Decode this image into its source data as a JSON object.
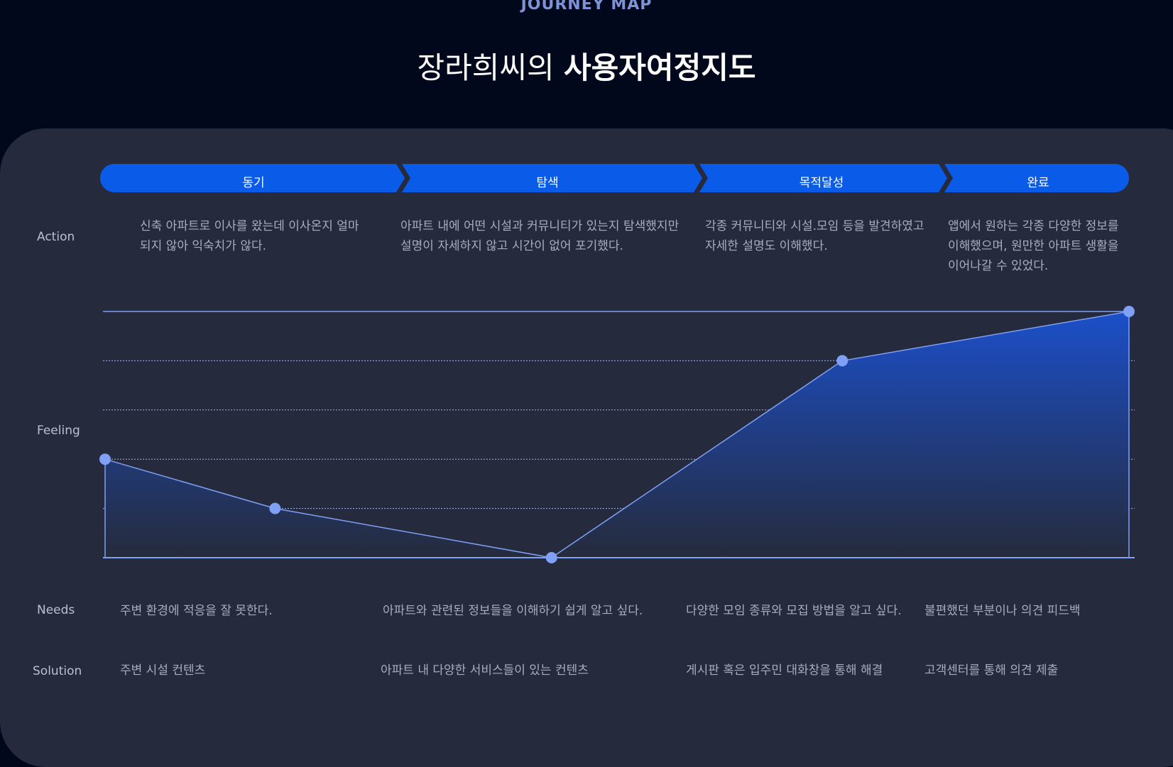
{
  "header": {
    "eyebrow": "JOURNEY MAP",
    "title_regular": "장라희씨의",
    "title_bold": "사용자여정지도"
  },
  "stages": [
    "동기",
    "탐색",
    "목적달성",
    "완료"
  ],
  "rows": {
    "action_label": "Action",
    "feeling_label": "Feeling",
    "needs_label": "Needs",
    "solution_label": "Solution"
  },
  "action": [
    [
      "신축 아파트로 이사를 왔는데 이사온지 얼마",
      "되지 않아 익숙치가 않다."
    ],
    [
      "아파트 내에 어떤 시설과 커뮤니티가 있는지 탐색했지만",
      "설명이 자세하지 않고 시간이 없어 포기했다."
    ],
    [
      "각종 커뮤니티와 시설.모임 등을 발견하였고",
      "자세한 설명도 이해했다."
    ],
    [
      "앱에서 원하는 각종 다양한 정보를",
      "이해했으며, 원만한 아파트 생활을",
      "이어나갈 수 있었다."
    ]
  ],
  "needs": [
    "주변 환경에 적응을 잘 못한다.",
    "아파트와 관련된 정보들을 이해하기 쉽게 알고 싶다.",
    "다양한 모임 종류와 모집 방법을 알고 싶다.",
    "불편했던 부분이나 의견 피드백"
  ],
  "solution": [
    "주변 시설 컨텐츠",
    "아파트 내 다양한 서비스들이 있는 컨텐츠",
    "게시판 혹은 입주민 대화창을 통해 해결",
    "고객센터를 통해 의견 제출"
  ],
  "colors": {
    "background": "#02081c",
    "panel": "#252b3c",
    "stage_blue": "#0a5ce8",
    "line": "#7fa0f5",
    "point": "#7fa0f5"
  },
  "chart_data": {
    "type": "area",
    "ylim": [
      0,
      5
    ],
    "grid": "dotted",
    "values": [
      2,
      1,
      0,
      4,
      5
    ],
    "x": [
      0.0,
      0.166,
      0.436,
      0.72,
      1.0
    ]
  }
}
